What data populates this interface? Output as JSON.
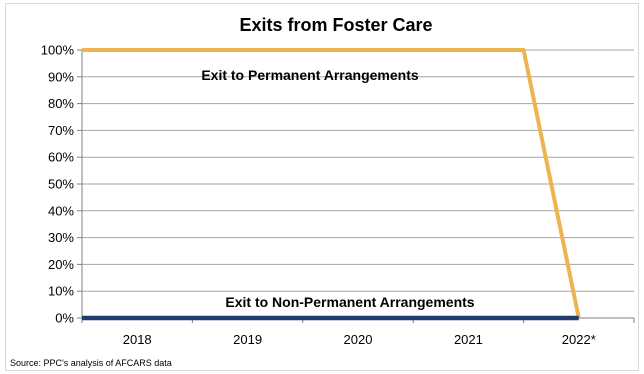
{
  "chart_data": {
    "type": "line",
    "title": "Exits from Foster Care",
    "categories": [
      "2018",
      "2019",
      "2020",
      "2021",
      "2022*"
    ],
    "x_positions": [
      1.5,
      2.5,
      3.5,
      4.5,
      5.5
    ],
    "ylim": [
      0,
      100
    ],
    "y_tick_values": [
      0,
      10,
      20,
      30,
      40,
      50,
      60,
      70,
      80,
      90,
      100
    ],
    "y_tick_labels": [
      "0%",
      "10%",
      "20%",
      "30%",
      "40%",
      "50%",
      "60%",
      "70%",
      "80%",
      "90%",
      "100%"
    ],
    "grid": true,
    "series": [
      {
        "name": "Exit to Permanent Arrangements",
        "color": "#EDB551",
        "x": [
          1.0,
          5.0,
          5.5
        ],
        "values": [
          100,
          100,
          0
        ]
      },
      {
        "name": "Exit to Non-Permanent Arrangements",
        "color": "#1F3C6E",
        "x": [
          1.0,
          5.5
        ],
        "values": [
          0,
          0
        ]
      }
    ],
    "annotations": [
      {
        "text": "Exit to Permanent Arrangements",
        "series": 0
      },
      {
        "text": "Exit to Non-Permanent Arrangements",
        "series": 1
      }
    ],
    "source": "Source: PPC's analysis of AFCARS data"
  }
}
